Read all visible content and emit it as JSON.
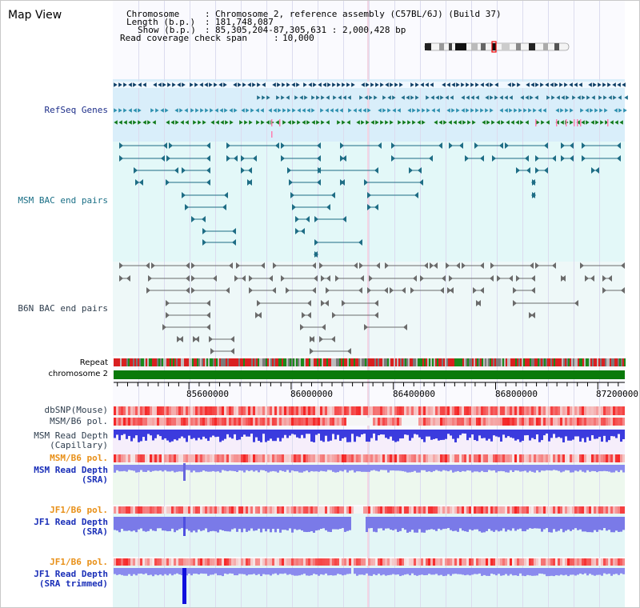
{
  "window": {
    "title": "Map View"
  },
  "header": {
    "chromosome_label": "Chromosome",
    "chromosome_value": "Chromosome 2, reference assembly (C57BL/6J) (Build 37)",
    "length_label": "Length (b.p.)",
    "length_value": "181,748,087",
    "show_label": "Show (b.p.)",
    "show_value": "85,305,204-87,305,631 : 2,000,428 bp",
    "coverage_label": "Read coverage check span",
    "coverage_value": "10,000"
  },
  "tracks": {
    "refseq": "RefSeq Genes",
    "msm_bac": "MSM BAC end pairs",
    "b6n_bac": "B6N BAC end pairs",
    "repeat": "Repeat",
    "chromosome": "chromosome 2",
    "dbsnp": "dbSNP(Mouse)",
    "msm_b6_pol": "MSM/B6 pol.",
    "msm_depth_cap_1": "MSM Read Depth",
    "msm_depth_cap_2": "(Capillary)",
    "msm_b6_pol_2": "MSM/B6 pol.",
    "msm_depth_sra_1": "MSM Read Depth",
    "msm_depth_sra_2": "(SRA)",
    "jf1_b6_pol": "JF1/B6 pol.",
    "jf1_depth_sra_1": "JF1 Read Depth",
    "jf1_depth_sra_2": "(SRA)",
    "jf1_b6_pol_2": "JF1/B6 pol.",
    "jf1_depth_trim_1": "JF1 Read Depth",
    "jf1_depth_trim_2": "(SRA trimmed)"
  },
  "axis": {
    "ticks": [
      "85600000",
      "86000000",
      "86400000",
      "86800000",
      "87200000"
    ],
    "tick_values": [
      85600000,
      86000000,
      86400000,
      86800000,
      87200000
    ],
    "range": [
      85305204,
      87305631
    ]
  },
  "colors": {
    "refseq_band": "#d9eefa",
    "teal_band": "#e3f8f8",
    "grey_band": "#ecf7f7",
    "chromosome": "#0a7a0a",
    "depth_blue": "#2a2adf",
    "pol_red": "#ee2222"
  }
}
